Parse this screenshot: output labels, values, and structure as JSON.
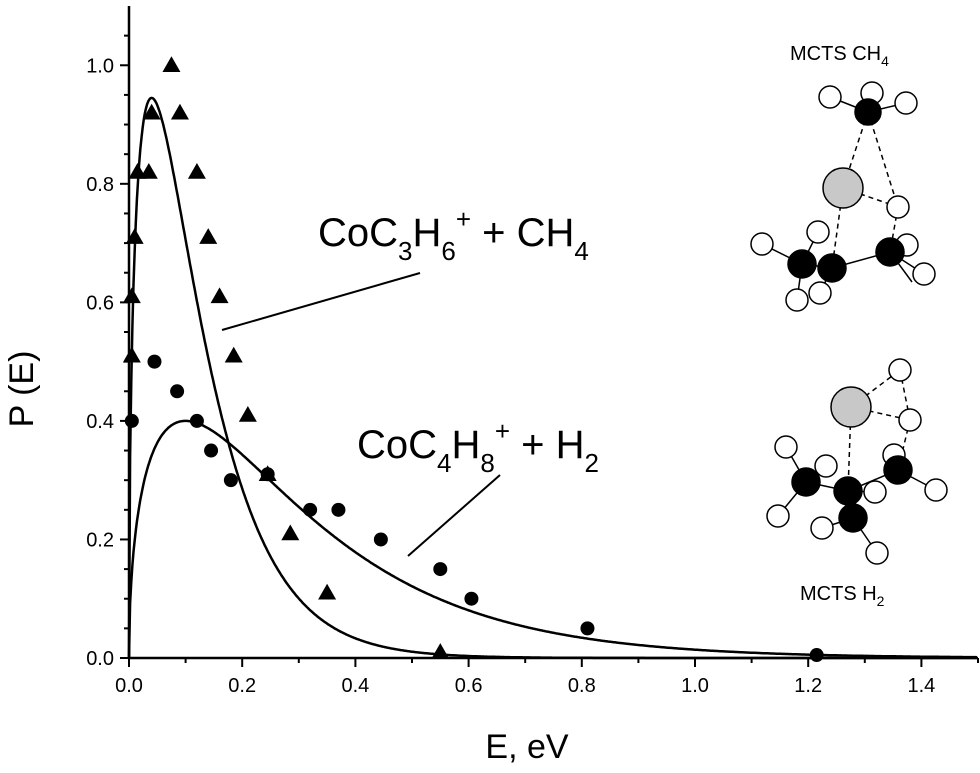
{
  "chart_data": {
    "type": "scatter",
    "xlabel": "E, eV",
    "ylabel": "P (E)",
    "xlim": [
      0,
      1.5
    ],
    "ylim": [
      0,
      1.1
    ],
    "x_ticks": [
      "0.0",
      "0.2",
      "0.4",
      "0.6",
      "0.8",
      "1.0",
      "1.2",
      "1.4"
    ],
    "y_ticks": [
      "0.0",
      "0.2",
      "0.4",
      "0.6",
      "0.8",
      "1.0"
    ],
    "grid": false,
    "series": [
      {
        "name": "CoC3H6+ + CH4",
        "label_parts": [
          "CoC",
          "3",
          "H",
          "6",
          "+",
          " + CH",
          "4"
        ],
        "marker": "triangle",
        "points": [
          [
            0.005,
            0.51
          ],
          [
            0.005,
            0.61
          ],
          [
            0.01,
            0.71
          ],
          [
            0.015,
            0.82
          ],
          [
            0.035,
            0.82
          ],
          [
            0.04,
            0.92
          ],
          [
            0.075,
            1.0
          ],
          [
            0.09,
            0.92
          ],
          [
            0.12,
            0.82
          ],
          [
            0.14,
            0.71
          ],
          [
            0.16,
            0.61
          ],
          [
            0.185,
            0.51
          ],
          [
            0.21,
            0.41
          ],
          [
            0.245,
            0.31
          ],
          [
            0.285,
            0.21
          ],
          [
            0.35,
            0.11
          ],
          [
            0.55,
            0.01
          ]
        ],
        "fit_peak": 0.945,
        "fit_peak_e": 0.04
      },
      {
        "name": "CoC4H8+ + H2",
        "label_parts": [
          "CoC",
          "4",
          "H",
          "8",
          "+",
          " + H",
          "2"
        ],
        "marker": "circle",
        "points": [
          [
            0.005,
            0.4
          ],
          [
            0.045,
            0.5
          ],
          [
            0.085,
            0.45
          ],
          [
            0.12,
            0.4
          ],
          [
            0.145,
            0.35
          ],
          [
            0.18,
            0.3
          ],
          [
            0.245,
            0.31
          ],
          [
            0.32,
            0.25
          ],
          [
            0.37,
            0.25
          ],
          [
            0.445,
            0.2
          ],
          [
            0.55,
            0.15
          ],
          [
            0.605,
            0.1
          ],
          [
            0.81,
            0.05
          ],
          [
            1.215,
            0.005
          ]
        ],
        "fit_peak": 0.4,
        "fit_peak_e": 0.1
      }
    ],
    "annotations": {
      "top_molecule": {
        "text": "MCTS CH",
        "sub": "4"
      },
      "bottom_molecule": {
        "text": "MCTS H",
        "sub": "2"
      }
    }
  }
}
